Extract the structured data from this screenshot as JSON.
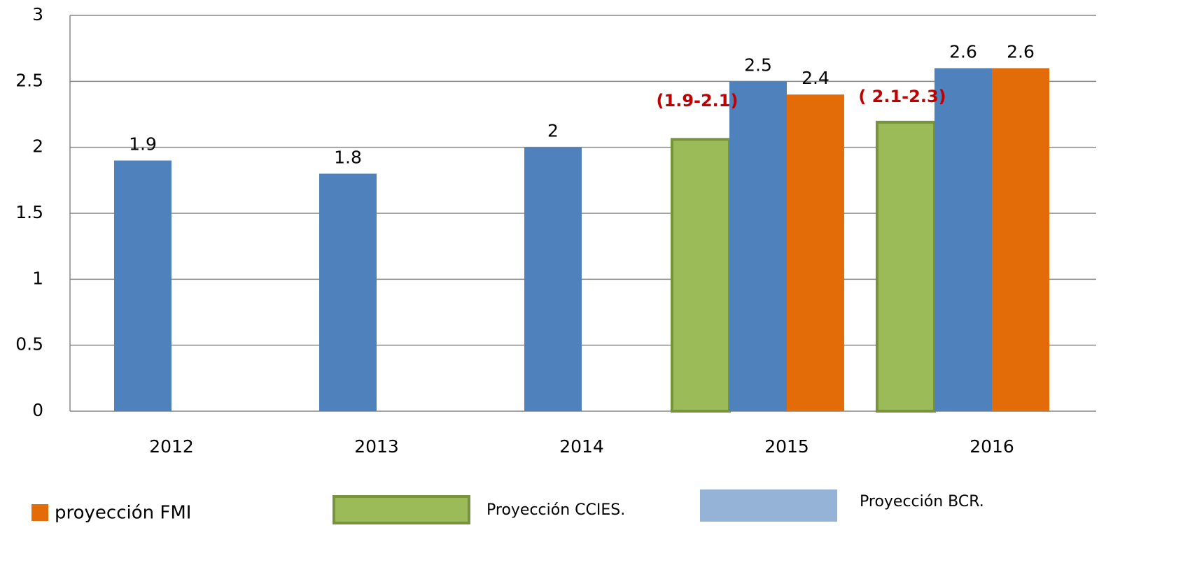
{
  "chart_data": {
    "type": "bar",
    "categories": [
      "2012",
      "2013",
      "2014",
      "2015",
      "2016"
    ],
    "series": [
      {
        "name": "Proyección CCIES.",
        "color": "#9bbb59",
        "stroke": "#77933c",
        "values": [
          null,
          null,
          null,
          2.06,
          2.19
        ],
        "show_labels": false
      },
      {
        "name": "Proyección BCR.",
        "color": "#4f81bd",
        "legend_color": "#95b3d7",
        "values": [
          1.9,
          1.8,
          2,
          2.5,
          2.6
        ],
        "show_labels": true
      },
      {
        "name": "proyección FMI",
        "color": "#e36c09",
        "values": [
          null,
          null,
          null,
          2.4,
          2.6
        ],
        "show_labels": true
      }
    ],
    "annotations": [
      "(1.9-2.1)",
      "( 2.1-2.3)"
    ],
    "annotation_color": "#c00000",
    "ylim": [
      0,
      3
    ],
    "yticks": [
      0,
      0.5,
      1,
      1.5,
      2,
      2.5,
      3
    ],
    "grid": true
  }
}
